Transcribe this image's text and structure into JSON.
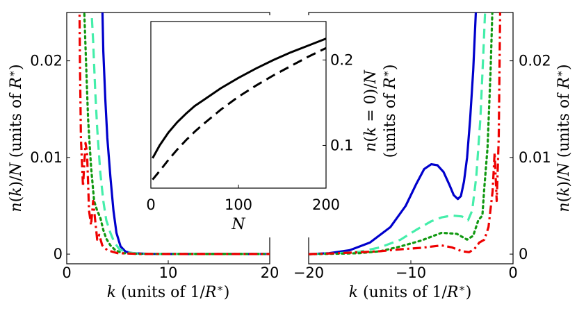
{
  "chart_data": [
    {
      "id": "left",
      "type": "line",
      "xlabel": "k (units of 1/R*)",
      "ylabel": "n(k)/N (units of R*)",
      "xlim": [
        0,
        20
      ],
      "ylim": [
        -0.001,
        0.025
      ],
      "xticks": [
        "0",
        "10",
        "20"
      ],
      "yticks": [
        "0",
        "0.01",
        "0.02"
      ],
      "series": [
        {
          "name": "solid",
          "color": "#0000cc",
          "dash": "solid",
          "points": [
            [
              3.5,
              0.026
            ],
            [
              3.6,
              0.021
            ],
            [
              3.8,
              0.016
            ],
            [
              4.0,
              0.012
            ],
            [
              4.3,
              0.008
            ],
            [
              4.6,
              0.0045
            ],
            [
              4.9,
              0.0022
            ],
            [
              5.3,
              0.0008
            ],
            [
              5.8,
              0.00025
            ],
            [
              6.5,
              0.0001
            ],
            [
              8,
              3e-05
            ],
            [
              12,
              1e-05
            ],
            [
              20,
              1e-05
            ]
          ]
        },
        {
          "name": "dashed",
          "color": "#44eeaa",
          "dash": "dashed",
          "points": [
            [
              2.4,
              0.026
            ],
            [
              2.6,
              0.022
            ],
            [
              2.8,
              0.017
            ],
            [
              3.0,
              0.013
            ],
            [
              3.3,
              0.0085
            ],
            [
              3.6,
              0.0055
            ],
            [
              3.9,
              0.0035
            ],
            [
              4.3,
              0.0022
            ],
            [
              4.7,
              0.0012
            ],
            [
              5.2,
              0.0005
            ],
            [
              5.8,
              0.0002
            ],
            [
              7,
              5e-05
            ],
            [
              10,
              1e-05
            ],
            [
              20,
              1e-05
            ]
          ]
        },
        {
          "name": "dotted",
          "color": "#119911",
          "dash": "dotted",
          "points": [
            [
              1.7,
              0.026
            ],
            [
              1.9,
              0.02
            ],
            [
              2.1,
              0.014
            ],
            [
              2.4,
              0.009
            ],
            [
              2.7,
              0.0055
            ],
            [
              3.0,
              0.0045
            ],
            [
              3.3,
              0.0038
            ],
            [
              3.6,
              0.0025
            ],
            [
              3.9,
              0.0016
            ],
            [
              4.3,
              0.0009
            ],
            [
              4.8,
              0.0004
            ],
            [
              5.5,
              0.0001
            ],
            [
              7,
              3e-05
            ],
            [
              10,
              1e-05
            ],
            [
              20,
              1e-05
            ]
          ]
        },
        {
          "name": "dash-dot",
          "color": "#ee0000",
          "dash": "dashdot",
          "points": [
            [
              1.25,
              0.026
            ],
            [
              1.3,
              0.02
            ],
            [
              1.4,
              0.012
            ],
            [
              1.6,
              0.007
            ],
            [
              1.85,
              0.0115
            ],
            [
              2.0,
              0.0105
            ],
            [
              2.2,
              0.0045
            ],
            [
              2.4,
              0.003
            ],
            [
              2.6,
              0.0055
            ],
            [
              2.8,
              0.0035
            ],
            [
              3.0,
              0.0015
            ],
            [
              3.2,
              0.002
            ],
            [
              3.5,
              0.0009
            ],
            [
              4.0,
              0.0004
            ],
            [
              5.0,
              0.0001
            ],
            [
              7,
              3e-05
            ],
            [
              10,
              1e-05
            ],
            [
              20,
              1e-05
            ]
          ]
        }
      ]
    },
    {
      "id": "right",
      "type": "line",
      "xlabel": "k (units of 1/R*)",
      "ylabel": "n(k)/N (units of R*)",
      "xlim": [
        -20,
        0
      ],
      "ylim": [
        -0.001,
        0.025
      ],
      "xticks": [
        "−20",
        "−10",
        "0"
      ],
      "yticks": [
        "0",
        "0.01",
        "0.02"
      ],
      "series": [
        {
          "name": "solid",
          "color": "#0000cc",
          "dash": "solid",
          "points": [
            [
              -20,
              0.0
            ],
            [
              -18,
              0.0001
            ],
            [
              -16,
              0.0004
            ],
            [
              -14,
              0.0012
            ],
            [
              -12,
              0.0028
            ],
            [
              -10.5,
              0.005
            ],
            [
              -9.5,
              0.0072
            ],
            [
              -8.7,
              0.0088
            ],
            [
              -8,
              0.0093
            ],
            [
              -7.4,
              0.0092
            ],
            [
              -6.8,
              0.0085
            ],
            [
              -6.2,
              0.0071
            ],
            [
              -5.8,
              0.0061
            ],
            [
              -5.4,
              0.0057
            ],
            [
              -5.1,
              0.006
            ],
            [
              -4.8,
              0.0075
            ],
            [
              -4.5,
              0.01
            ],
            [
              -4.2,
              0.014
            ],
            [
              -3.9,
              0.019
            ],
            [
              -3.6,
              0.026
            ]
          ]
        },
        {
          "name": "dashed",
          "color": "#44eeaa",
          "dash": "dashed",
          "points": [
            [
              -20,
              0.0
            ],
            [
              -17,
              0.0001
            ],
            [
              -15,
              0.00025
            ],
            [
              -13,
              0.0007
            ],
            [
              -11,
              0.0015
            ],
            [
              -9.5,
              0.0025
            ],
            [
              -8,
              0.0034
            ],
            [
              -7,
              0.0038
            ],
            [
              -6,
              0.004
            ],
            [
              -5,
              0.0039
            ],
            [
              -4.4,
              0.0035
            ],
            [
              -4.0,
              0.0045
            ],
            [
              -3.6,
              0.008
            ],
            [
              -3.2,
              0.014
            ],
            [
              -2.9,
              0.021
            ],
            [
              -2.7,
              0.026
            ]
          ]
        },
        {
          "name": "dotted",
          "color": "#119911",
          "dash": "dotted",
          "points": [
            [
              -20,
              0.0
            ],
            [
              -17,
              5e-05
            ],
            [
              -15,
              0.0001
            ],
            [
              -13,
              0.0003
            ],
            [
              -11,
              0.0008
            ],
            [
              -9,
              0.0014
            ],
            [
              -7,
              0.0022
            ],
            [
              -5.5,
              0.0021
            ],
            [
              -4.5,
              0.0015
            ],
            [
              -3.9,
              0.0019
            ],
            [
              -3.4,
              0.0035
            ],
            [
              -3.0,
              0.004
            ],
            [
              -2.8,
              0.007
            ],
            [
              -2.5,
              0.011
            ],
            [
              -2.2,
              0.019
            ],
            [
              -2.0,
              0.026
            ]
          ]
        },
        {
          "name": "dash-dot",
          "color": "#ee0000",
          "dash": "dashdot",
          "points": [
            [
              -20,
              0.0
            ],
            [
              -17,
              0.0001
            ],
            [
              -15,
              0.0002
            ],
            [
              -13,
              0.0003
            ],
            [
              -11,
              0.0005
            ],
            [
              -9,
              0.00065
            ],
            [
              -7,
              0.0009
            ],
            [
              -6,
              0.0007
            ],
            [
              -5,
              0.0003
            ],
            [
              -4.3,
              0.0002
            ],
            [
              -3.8,
              0.0005
            ],
            [
              -3.3,
              0.0012
            ],
            [
              -2.8,
              0.0015
            ],
            [
              -2.4,
              0.0028
            ],
            [
              -2.0,
              0.0065
            ],
            [
              -1.8,
              0.0105
            ],
            [
              -1.6,
              0.0055
            ],
            [
              -1.4,
              0.012
            ],
            [
              -1.25,
              0.026
            ]
          ]
        }
      ]
    },
    {
      "id": "inset",
      "type": "line",
      "xlabel": "N",
      "ylabel": "n(k=0)/N (units of R*)",
      "xlim": [
        0,
        200
      ],
      "ylim": [
        0.05,
        0.245
      ],
      "xticks": [
        "0",
        "100",
        "200"
      ],
      "yticks": [
        "0.1",
        "0.2"
      ],
      "series": [
        {
          "name": "solid",
          "color": "#000000",
          "dash": "solid",
          "points": [
            [
              2,
              0.085
            ],
            [
              10,
              0.1
            ],
            [
              20,
              0.115
            ],
            [
              30,
              0.127
            ],
            [
              40,
              0.137
            ],
            [
              50,
              0.146
            ],
            [
              60,
              0.153
            ],
            [
              80,
              0.167
            ],
            [
              100,
              0.179
            ],
            [
              120,
              0.19
            ],
            [
              140,
              0.2
            ],
            [
              160,
              0.209
            ],
            [
              180,
              0.217
            ],
            [
              200,
              0.225
            ]
          ]
        },
        {
          "name": "dashed",
          "color": "#000000",
          "dash": "dashed",
          "points": [
            [
              2,
              0.06
            ],
            [
              10,
              0.07
            ],
            [
              20,
              0.083
            ],
            [
              30,
              0.095
            ],
            [
              40,
              0.106
            ],
            [
              50,
              0.116
            ],
            [
              60,
              0.125
            ],
            [
              80,
              0.142
            ],
            [
              100,
              0.157
            ],
            [
              120,
              0.17
            ],
            [
              140,
              0.182
            ],
            [
              160,
              0.193
            ],
            [
              180,
              0.204
            ],
            [
              200,
              0.214
            ]
          ]
        }
      ]
    }
  ]
}
